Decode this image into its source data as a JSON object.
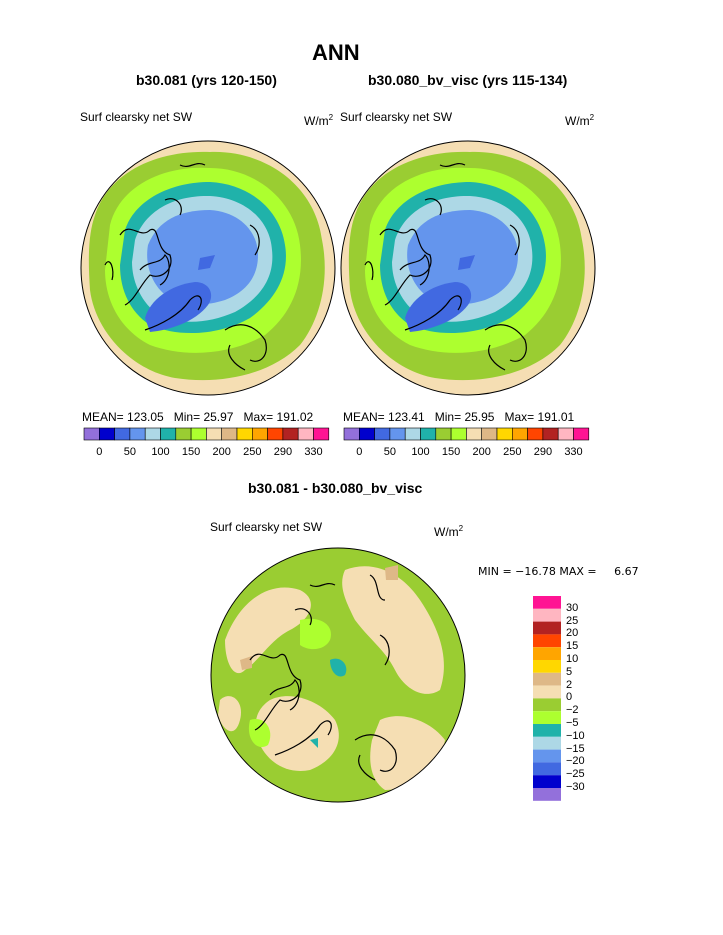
{
  "title": "ANN",
  "panels": [
    {
      "subtitle": "b30.081 (yrs 120-150)",
      "left_label": "Surf clearsky net SW",
      "units": "W/m",
      "units_sup": "2",
      "mean_label": "MEAN=",
      "mean_value": "123.05",
      "min_label": "Min=",
      "min_value": "25.97",
      "max_label": "Max=",
      "max_value": "191.02"
    },
    {
      "subtitle": "b30.080_bv_visc (yrs 115-134)",
      "left_label": "Surf clearsky net SW",
      "units": "W/m",
      "units_sup": "2",
      "mean_label": "MEAN=",
      "mean_value": "123.41",
      "min_label": "Min=",
      "min_value": "25.95",
      "max_label": "Max=",
      "max_value": "191.01"
    }
  ],
  "colorbar_h": {
    "colors": [
      "#9370DB",
      "#0000CD",
      "#4169E1",
      "#6495ED",
      "#ADD8E6",
      "#20B2AA",
      "#9ACD32",
      "#ADFF2F",
      "#F5DEB3",
      "#DEB887",
      "#FFD700",
      "#FFA500",
      "#FF4500",
      "#B22222",
      "#FFB6C1",
      "#FF1493"
    ],
    "labels": [
      "0",
      "50",
      "100",
      "150",
      "200",
      "250",
      "290",
      "330"
    ]
  },
  "diff": {
    "title": "b30.081 - b30.080_bv_visc",
    "left_label": "Surf clearsky net SW",
    "units": "W/m",
    "units_sup": "2",
    "stats": "MIN = −16.78 MAX =     6.67",
    "colorbar": {
      "colors": [
        "#FF1493",
        "#FFB6C1",
        "#B22222",
        "#FF4500",
        "#FFA500",
        "#FFD700",
        "#DEB887",
        "#F5DEB3",
        "#9ACD32",
        "#ADFF2F",
        "#20B2AA",
        "#ADD8E6",
        "#6495ED",
        "#4169E1",
        "#0000CD",
        "#9370DB"
      ],
      "labels": [
        "30",
        "25",
        "20",
        "15",
        "10",
        "5",
        "2",
        "0",
        "−2",
        "−5",
        "−10",
        "−15",
        "−20",
        "−25",
        "−30"
      ]
    }
  }
}
